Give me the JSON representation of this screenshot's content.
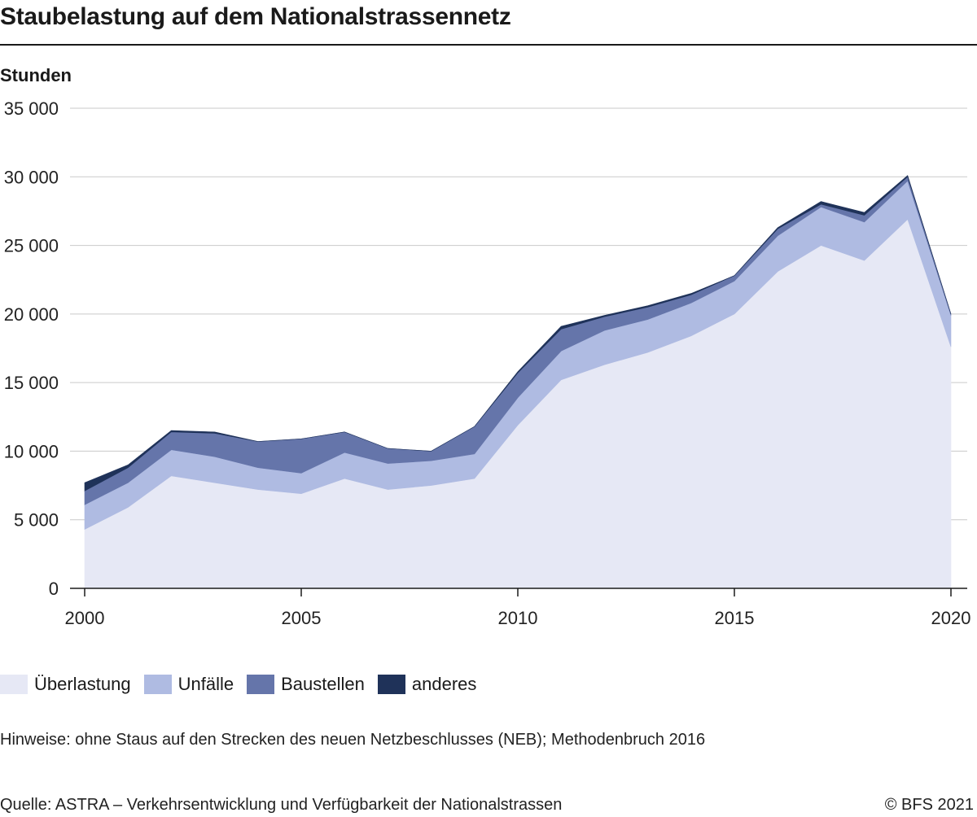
{
  "title": "Staubelastung auf dem Nationalstrassennetz",
  "unit_label": "Stunden",
  "note": "Hinweise: ohne Staus auf den Strecken des neuen Netzbeschlusses (NEB); Methodenbruch 2016",
  "source": "Quelle: ASTRA – Verkehrsentwicklung und Verfügbarkeit der Nationalstrassen",
  "copyright": "© BFS 2021",
  "chart_data": {
    "type": "area",
    "stacked": true,
    "x": [
      2000,
      2001,
      2002,
      2003,
      2004,
      2005,
      2006,
      2007,
      2008,
      2009,
      2010,
      2011,
      2012,
      2013,
      2014,
      2015,
      2016,
      2017,
      2018,
      2019,
      2020
    ],
    "series": [
      {
        "name": "Überlastung",
        "color": "#e6e8f5",
        "values": [
          4300,
          5900,
          8200,
          7700,
          7200,
          6900,
          8000,
          7200,
          7500,
          8000,
          11900,
          15200,
          16300,
          17200,
          18400,
          20000,
          23100,
          25000,
          23900,
          26900,
          17600
        ]
      },
      {
        "name": "Unfälle",
        "color": "#afbbe2",
        "values": [
          1800,
          1800,
          1900,
          1900,
          1600,
          1500,
          1900,
          1900,
          1800,
          1800,
          2000,
          2100,
          2500,
          2400,
          2400,
          2400,
          2600,
          2800,
          2800,
          2800,
          2300
        ]
      },
      {
        "name": "Baustellen",
        "color": "#6575aa",
        "values": [
          1000,
          1100,
          1300,
          1700,
          1900,
          2500,
          1500,
          1100,
          700,
          2000,
          1800,
          1600,
          1000,
          900,
          600,
          400,
          500,
          200,
          500,
          300,
          100
        ]
      },
      {
        "name": "anderes",
        "color": "#1f3259",
        "values": [
          600,
          200,
          100,
          100,
          0,
          0,
          0,
          0,
          0,
          0,
          100,
          200,
          100,
          100,
          100,
          0,
          100,
          200,
          200,
          100,
          0
        ]
      }
    ],
    "y_ticks": [
      "35 000",
      "30 000",
      "25 000",
      "20 000",
      "15 000",
      "10 000",
      "5 000",
      "0"
    ],
    "x_ticks": [
      "2000",
      "2005",
      "2010",
      "2015",
      "2020"
    ],
    "ylim": [
      0,
      35000
    ],
    "xlim": [
      2000,
      2020
    ],
    "ylabel": "Stunden",
    "grid": true,
    "legend_position": "bottom-left"
  }
}
